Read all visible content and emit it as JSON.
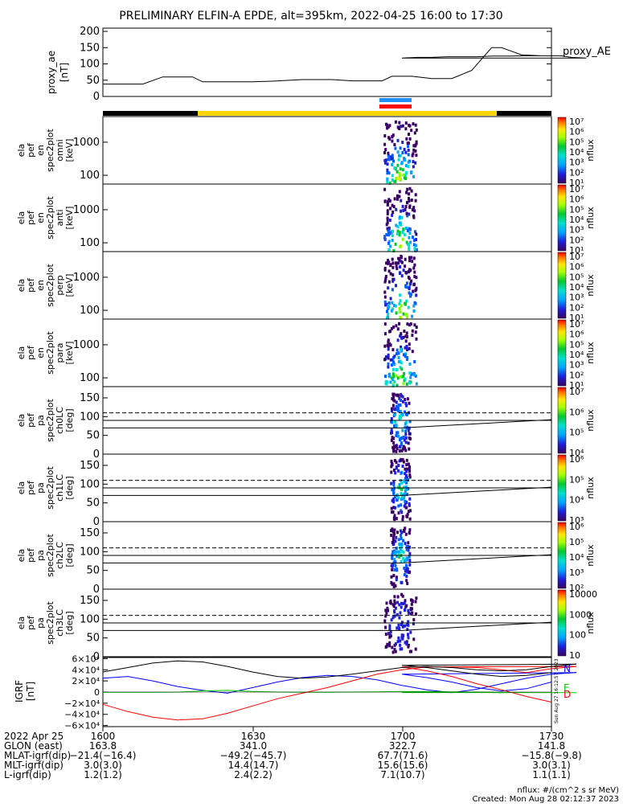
{
  "title": "PRELIMINARY ELFIN-A EPDE, alt=395km, 2022-04-25 16:00 to 17:30",
  "ae_panel": {
    "ylabel": "proxy_ae\n[nT]",
    "legend": "proxy_AE",
    "ticks": [
      "200",
      "150",
      "100",
      "50",
      "0"
    ]
  },
  "spectra_panels": [
    {
      "ylabel": [
        "ela",
        "pef",
        "en",
        "spec2plot",
        "omni",
        "[keV]"
      ],
      "ticks": [
        "1000",
        "100"
      ]
    },
    {
      "ylabel": [
        "ela",
        "pef",
        "en",
        "spec2plot",
        "anti",
        "[keV]"
      ],
      "ticks": [
        "1000",
        "100"
      ]
    },
    {
      "ylabel": [
        "ela",
        "pef",
        "en",
        "spec2plot",
        "perp",
        "[keV]"
      ],
      "ticks": [
        "1000",
        "100"
      ]
    },
    {
      "ylabel": [
        "ela",
        "pef",
        "en",
        "spec2plot",
        "para",
        "[keV]"
      ],
      "ticks": [
        "1000",
        "100"
      ]
    }
  ],
  "pa_panels": [
    {
      "ylabel": [
        "ela",
        "pef",
        "pa",
        "spec2plot",
        "ch0LC",
        "[deg]"
      ],
      "ticks": [
        "150",
        "100",
        "50",
        "0"
      ]
    },
    {
      "ylabel": [
        "ela",
        "pef",
        "pa",
        "spec2plot",
        "ch1LC",
        "[deg]"
      ],
      "ticks": [
        "150",
        "100",
        "50",
        "0"
      ]
    },
    {
      "ylabel": [
        "ela",
        "pef",
        "pa",
        "spec2plot",
        "ch2LC",
        "[deg]"
      ],
      "ticks": [
        "150",
        "100",
        "50",
        "0"
      ]
    },
    {
      "ylabel": [
        "ela",
        "pef",
        "pa",
        "spec2plot",
        "ch3LC",
        "[deg]"
      ],
      "ticks": [
        "150",
        "100",
        "50",
        "0"
      ]
    }
  ],
  "colorbars": [
    {
      "label": "nflux",
      "ticks": [
        "10⁷",
        "10⁶",
        "10⁵",
        "10⁴",
        "10³",
        "10²",
        "10¹"
      ]
    },
    {
      "label": "nflux",
      "ticks": [
        "10⁷",
        "10⁶",
        "10⁵",
        "10⁴",
        "10³",
        "10²",
        "10¹"
      ]
    },
    {
      "label": "nflux",
      "ticks": [
        "10⁷",
        "10⁶",
        "10⁵",
        "10⁴",
        "10³",
        "10²",
        "10¹"
      ]
    },
    {
      "label": "nflux",
      "ticks": [
        "10⁷",
        "10⁶",
        "10⁵",
        "10⁴",
        "10³",
        "10²",
        "10¹"
      ]
    },
    {
      "label": "nflux",
      "ticks": [
        "10⁷",
        "10⁶",
        "10⁵",
        "10⁴"
      ]
    },
    {
      "label": "nflux",
      "ticks": [
        "10⁶",
        "10⁵",
        "10⁴",
        "10³"
      ]
    },
    {
      "label": "nflux",
      "ticks": [
        "10⁶",
        "10⁵",
        "10⁴",
        "10³",
        "10²"
      ]
    },
    {
      "label": "nflux",
      "ticks": [
        "10000",
        "1000",
        "100",
        "10"
      ]
    }
  ],
  "igrf_panel": {
    "ylabel": "IGRF\n[nT]",
    "ticks": [
      "6×10⁴",
      "4×10⁴",
      "2×10⁴",
      "0",
      "−2×10⁴",
      "−4×10⁴",
      "−6×10⁴"
    ],
    "legend": [
      {
        "label": "N",
        "color": "#0000ff"
      },
      {
        "label": "E",
        "color": "#00cc00"
      },
      {
        "label": "D",
        "color": "#ff0000"
      }
    ],
    "side_stamp": "Sun Aug 27 16:12:57 2023"
  },
  "footer": {
    "rows": [
      {
        "label": "2022 Apr 25",
        "values": [
          "1600",
          "1630",
          "1700",
          "1730"
        ]
      },
      {
        "label": "GLON (east)",
        "values": [
          "163.8",
          "341.0",
          "322.7",
          "141.8"
        ]
      },
      {
        "label": "MLAT-igrf(dip)",
        "values": [
          "−21.4(−16.4)",
          "−49.2(−45.7)",
          "67.7(71.6)",
          "−15.8(−9.8)"
        ]
      },
      {
        "label": "MLT-igrf(dip)",
        "values": [
          "3.0(3.0)",
          "14.4(14.7)",
          "15.6(15.6)",
          "3.0(3.1)"
        ]
      },
      {
        "label": "L-igrf(dip)",
        "values": [
          "1.2(1.2)",
          "2.4(2.2)",
          "7.1(10.7)",
          "1.1(1.1)"
        ]
      }
    ],
    "units_note": "nflux: #/(cm^2 s sr MeV)",
    "created": "Created: Mon Aug 28 02:12:37 2023"
  },
  "chart_data": [
    {
      "type": "line",
      "x": [
        1600,
        1603,
        1608,
        1612,
        1618,
        1620,
        1626,
        1630,
        1634,
        1640,
        1642,
        1646,
        1650,
        1652,
        1656,
        1658,
        1662,
        1666,
        1670,
        1674,
        1678,
        1680,
        1684,
        1688,
        1692,
        1694,
        1697,
        1700,
        1703,
        1706,
        1709,
        1712,
        1715,
        1718,
        1720,
        1722,
        1724,
        1728,
        1730
      ],
      "values": [
        38,
        38,
        38,
        60,
        60,
        45,
        45,
        45,
        47,
        52,
        52,
        52,
        48,
        48,
        48,
        62,
        62,
        55,
        55,
        80,
        150,
        150,
        128,
        125,
        125,
        120,
        118,
        118,
        120,
        120,
        122,
        122,
        122,
        124,
        124,
        124,
        125,
        125,
        125
      ],
      "series": [
        {
          "name": "proxy_AE"
        }
      ],
      "ylabel": "proxy_ae [nT]",
      "ylim": [
        0,
        210
      ]
    },
    {
      "type": "line",
      "x": [
        1600,
        1605,
        1610,
        1615,
        1620,
        1625,
        1630,
        1635,
        1640,
        1645,
        1650,
        1655,
        1660,
        1665,
        1670,
        1675,
        1680,
        1685,
        1690,
        1695,
        1700,
        1705,
        1710,
        1715,
        1720,
        1725,
        1730
      ],
      "series": [
        {
          "name": "N",
          "values": [
            25000,
            28000,
            20000,
            10000,
            3000,
            -2000,
            8000,
            18000,
            26000,
            30000,
            28000,
            22000,
            12000,
            4000,
            -1000,
            5000,
            15000,
            25000,
            32000,
            35000,
            32000,
            26000,
            18000,
            8000,
            2000,
            6000,
            18000
          ]
        },
        {
          "name": "E",
          "values": [
            -500,
            -400,
            -300,
            -200,
            2000,
            3000,
            1000,
            0,
            -500,
            -500,
            0,
            500,
            1000,
            800,
            500,
            0,
            -500,
            -800,
            -1000,
            -1000,
            -800,
            -600,
            -500,
            -700,
            -1000,
            -900,
            -1000
          ]
        },
        {
          "name": "D",
          "values": [
            -22000,
            -35000,
            -45000,
            -50000,
            -48000,
            -38000,
            -25000,
            -12000,
            -2000,
            8000,
            20000,
            32000,
            40000,
            45000,
            45000,
            44000,
            40000,
            35000,
            42000,
            46000,
            45000,
            38000,
            28000,
            15000,
            4000,
            -8000,
            -18000
          ]
        },
        {
          "name": "",
          "values": [
            36000,
            44000,
            52000,
            56000,
            54000,
            46000,
            36000,
            28000,
            25000,
            27000,
            32000,
            38000,
            44000,
            46000,
            44000,
            40000,
            38000,
            40000,
            46000,
            50000,
            48000,
            44000,
            38000,
            32000,
            28000,
            30000,
            35000
          ]
        }
      ],
      "ylabel": "IGRF [nT]",
      "ylim": [
        -62000,
        62000
      ]
    }
  ]
}
